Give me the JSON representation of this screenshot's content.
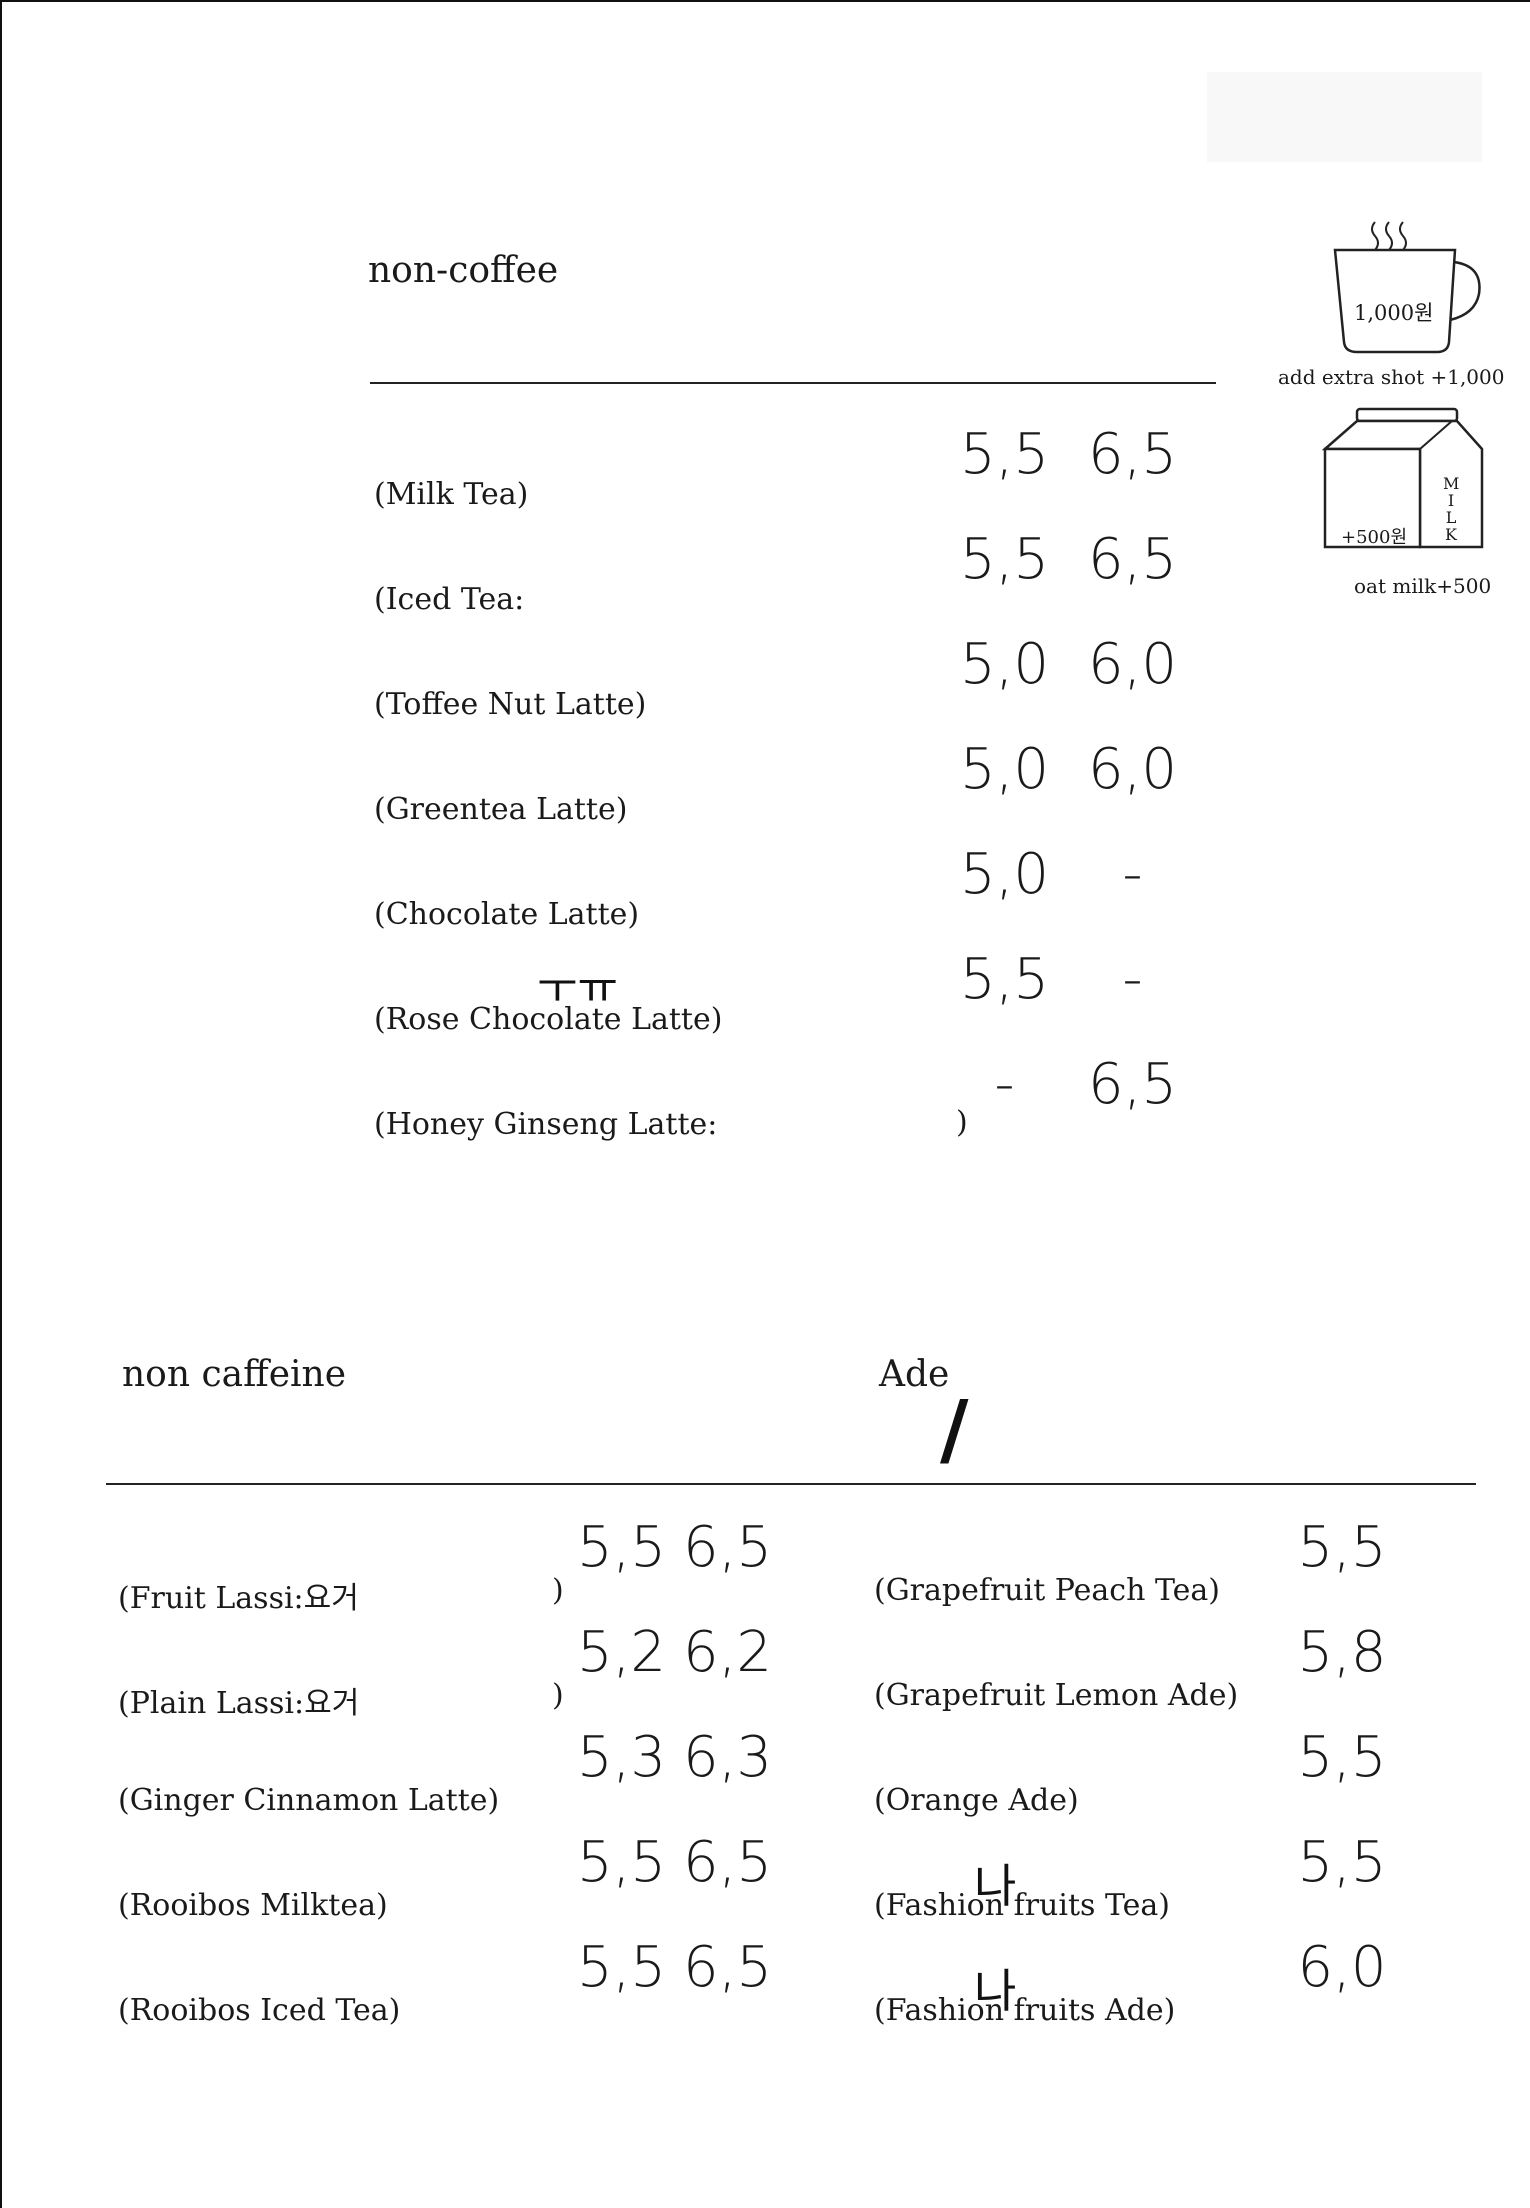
{
  "non_coffee": {
    "title": "non-coffee",
    "items": [
      {
        "name": "(Milk Tea)",
        "hot": "5,5",
        "ice": "6,5"
      },
      {
        "name": "(Iced Tea:",
        "hot": "5,5",
        "ice": "6,5"
      },
      {
        "name": "(Toffee Nut Latte)",
        "hot": "5,0",
        "ice": "6,0"
      },
      {
        "name": "(Greentea Latte)",
        "hot": "5,0",
        "ice": "6,0"
      },
      {
        "name": "(Chocolate Latte)",
        "hot": "5,0",
        "ice": "-"
      },
      {
        "name": "(Rose Chocolate Latte)",
        "hot": "5,5",
        "ice": "-"
      },
      {
        "name": "(Honey Ginseng Latte:",
        "hot": "-",
        "ice": "6,5"
      }
    ],
    "honey_close_paren": ")",
    "rose_mark": "ㅜㅠ"
  },
  "extras": {
    "cup_price": "1,000원",
    "cup_caption": "add extra shot +1,000",
    "carton_price": "+500원",
    "carton_letters": "MILK",
    "carton_caption": "oat milk+500",
    "steam_icon": "steam-icon",
    "cup_icon": "coffee-cup-icon",
    "carton_icon": "milk-carton-icon"
  },
  "non_caffeine": {
    "title": "non caffeine",
    "items": [
      {
        "name": "(Fruit Lassi:요거",
        "hot": "5,5",
        "ice": "6,5",
        "close": ")"
      },
      {
        "name": "(Plain Lassi:요거",
        "hot": "5,2",
        "ice": "6,2",
        "close": ")"
      },
      {
        "name": "(Ginger Cinnamon Latte)",
        "hot": "5,3",
        "ice": "6,3",
        "close": ""
      },
      {
        "name": "(Rooibos Milktea)",
        "hot": "5,5",
        "ice": "6,5",
        "close": ""
      },
      {
        "name": "(Rooibos Iced Tea)",
        "hot": "5,5",
        "ice": "6,5",
        "close": ""
      }
    ]
  },
  "ade": {
    "title": "Ade",
    "slash": "/",
    "items": [
      {
        "name": "(Grapefruit Peach Tea)",
        "price": "5,5",
        "mark": ""
      },
      {
        "name": "(Grapefruit Lemon Ade)",
        "price": "5,8",
        "mark": ""
      },
      {
        "name": "(Orange Ade)",
        "price": "5,5",
        "mark": ""
      },
      {
        "name": "(Fashion fruits Tea)",
        "price": "5,5",
        "mark": "나"
      },
      {
        "name": "(Fashion fruits Ade)",
        "price": "6,0",
        "mark": "나"
      }
    ]
  }
}
